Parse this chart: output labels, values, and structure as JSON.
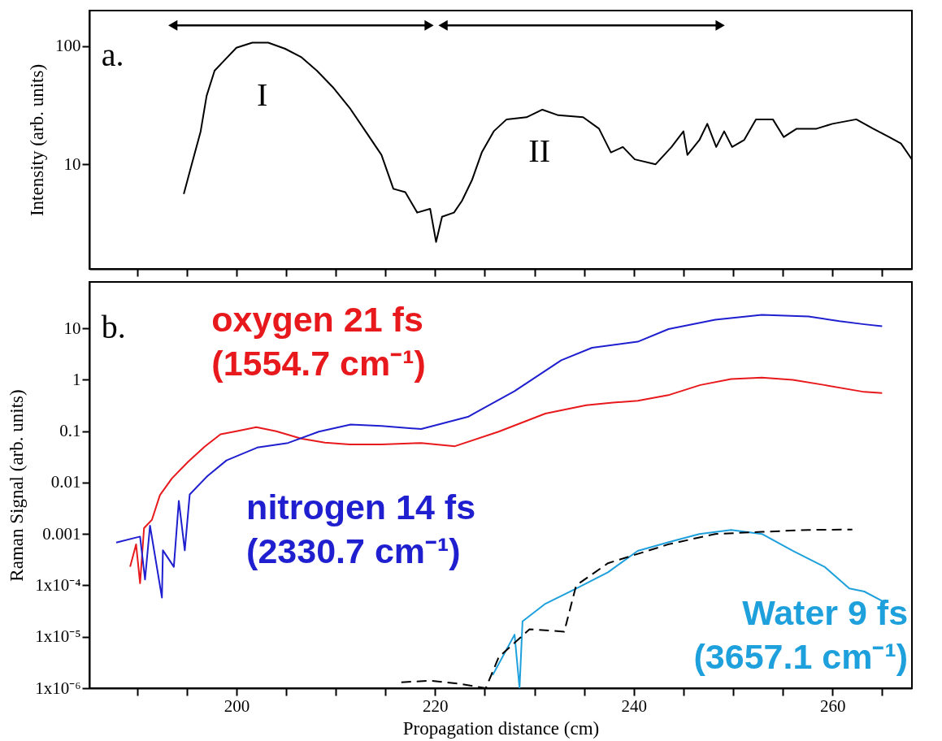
{
  "chart_data": [
    {
      "type": "line",
      "ylabel": "Intensity (arb. units)",
      "log": "y",
      "grid": false,
      "tick_labels": "y",
      "xlim": [
        185.2,
        268
      ],
      "ylim": [
        1.3,
        200
      ],
      "xticks": [
        {
          "value": 190,
          "label": null
        },
        {
          "value": 195,
          "label": null
        },
        {
          "value": 200,
          "label": null
        },
        {
          "value": 205,
          "label": null
        },
        {
          "value": 210,
          "label": null
        },
        {
          "value": 215,
          "label": null
        },
        {
          "value": 220,
          "label": null
        },
        {
          "value": 225,
          "label": null
        },
        {
          "value": 230,
          "label": null
        },
        {
          "value": 235,
          "label": null
        },
        {
          "value": 240,
          "label": null
        },
        {
          "value": 245,
          "label": null
        },
        {
          "value": 250,
          "label": null
        },
        {
          "value": 255,
          "label": null
        },
        {
          "value": 260,
          "label": null
        },
        {
          "value": 265,
          "label": null
        }
      ],
      "yticks": [
        10,
        100
      ],
      "annotations": [
        "a.",
        "I",
        "II"
      ],
      "series": [
        {
          "color": "#000000",
          "x": [
            194.7,
            195.5,
            196.4,
            197,
            197.8,
            198.8,
            200,
            201.6,
            203.2,
            204.9,
            206.5,
            208.1,
            209.7,
            211.4,
            213,
            214.6,
            215.8,
            217,
            218.2,
            219.5,
            220.1,
            220.7,
            221.9,
            222.7,
            223.7,
            224.7,
            225.9,
            227.2,
            229.2,
            230.8,
            232.4,
            234.9,
            236.5,
            237.7,
            238.9,
            240.1,
            242.2,
            243.8,
            245,
            245.4,
            246.6,
            247.4,
            248.3,
            249.1,
            249.9,
            251.1,
            252.3,
            254,
            255.1,
            256.4,
            258.4,
            260,
            262.4,
            264.1,
            265.7,
            266.9,
            268
          ],
          "values": [
            5.6,
            10,
            19,
            38,
            62,
            76,
            97,
            107,
            107,
            95,
            81,
            62,
            45,
            30,
            19,
            12,
            6.2,
            5.8,
            3.9,
            4.2,
            2.2,
            3.6,
            3.9,
            4.9,
            7.3,
            12.6,
            19,
            24,
            25,
            29,
            26,
            25,
            20,
            12.6,
            14,
            11,
            10,
            14,
            19,
            12,
            16,
            22,
            14,
            19,
            14,
            16,
            24,
            24,
            17,
            20,
            20,
            22,
            24,
            20,
            17,
            15,
            11
          ]
        }
      ]
    },
    {
      "type": "line",
      "xlabel": "Propagation distance (cm)",
      "ylabel": "Raman Signal (arb. units)",
      "log": "y",
      "grid": false,
      "xlim": [
        185.2,
        268
      ],
      "ylim": [
        1e-06,
        80
      ],
      "xticks": [
        {
          "value": 190,
          "label": null
        },
        {
          "value": 195,
          "label": null
        },
        200,
        {
          "value": 205,
          "label": null
        },
        {
          "value": 210,
          "label": null
        },
        {
          "value": 215,
          "label": null
        },
        220,
        {
          "value": 225,
          "label": null
        },
        {
          "value": 230,
          "label": null
        },
        {
          "value": 235,
          "label": null
        },
        240,
        {
          "value": 245,
          "label": null
        },
        {
          "value": 250,
          "label": null
        },
        {
          "value": 255,
          "label": null
        },
        260,
        {
          "value": 265,
          "label": null
        }
      ],
      "yticks": [
        {
          "value": 1e-06,
          "label": "1x10⁻⁶"
        },
        {
          "value": 1e-05,
          "label": "1x10⁻⁵"
        },
        {
          "value": 0.0001,
          "label": "1x10⁻⁴"
        },
        0.001,
        0.01,
        0.1,
        1,
        10
      ],
      "annotations": [
        "b."
      ],
      "series": [
        {
          "name": "oxygen 21 fs (1554.7 cm⁻¹)",
          "color": "#e8191c",
          "line_style": "solid",
          "x": [
            189.3,
            189.9,
            190.3,
            190.7,
            191.5,
            192.3,
            193.5,
            195.1,
            196.8,
            198.4,
            200,
            202,
            204,
            206.5,
            208.9,
            211.4,
            214.6,
            218.6,
            222,
            226.4,
            231.1,
            235.2,
            237.9,
            240.4,
            243.6,
            246.7,
            249.8,
            252.9,
            256,
            259.2,
            263.2,
            265
          ],
          "values": [
            0.00023,
            0.00063,
            0.00011,
            0.0013,
            0.0019,
            0.0057,
            0.012,
            0.025,
            0.05,
            0.087,
            0.1,
            0.12,
            0.1,
            0.072,
            0.06,
            0.055,
            0.055,
            0.059,
            0.051,
            0.098,
            0.22,
            0.32,
            0.36,
            0.39,
            0.51,
            0.79,
            1.03,
            1.1,
            1,
            0.79,
            0.58,
            0.55
          ]
        },
        {
          "name": "nitrogen 14 fs (2330.7 cm⁻¹)",
          "color": "#1f1fd0",
          "line_style": "solid",
          "x": [
            187.9,
            190.3,
            190.8,
            191.3,
            192.5,
            192.6,
            193.7,
            194.2,
            194.8,
            195.3,
            197.1,
            199,
            202.1,
            205.2,
            208.3,
            211.5,
            214.6,
            218.6,
            223.3,
            228,
            232.7,
            235.8,
            240.4,
            243.5,
            248.2,
            252.9,
            257.6,
            260.7,
            263.2,
            265
          ],
          "values": [
            0.00068,
            0.00089,
            0.00013,
            0.00145,
            5.8e-05,
            0.00048,
            0.00023,
            0.0044,
            0.00048,
            0.0059,
            0.0135,
            0.027,
            0.048,
            0.059,
            0.098,
            0.135,
            0.126,
            0.11,
            0.19,
            0.6,
            2.4,
            4.2,
            5.5,
            9.7,
            14.7,
            18.3,
            17,
            13.8,
            12,
            11
          ]
        },
        {
          "name": "Water 9 fs (3657.1 cm⁻¹)",
          "color": "#1ea0dc",
          "line_style": "solid",
          "x": [
            225.8,
            228,
            228.5,
            228.8,
            231.1,
            234.2,
            237.4,
            240.4,
            243.6,
            246.6,
            249.8,
            252.9,
            256,
            259.2,
            261.7,
            263.2,
            265
          ],
          "values": [
            1.8e-06,
            1.1e-05,
            1e-06,
            2e-05,
            4.4e-05,
            8.7e-05,
            0.00018,
            0.00047,
            0.0007,
            0.001,
            0.0012,
            0.001,
            0.00047,
            0.00023,
            8.7e-05,
            7.6e-05,
            5e-05
          ]
        },
        {
          "color": "#000000",
          "line_style": "dashed",
          "x": [
            216.6,
            219.5,
            222.7,
            225.1,
            226.4,
            229.5,
            233,
            234.2,
            237.4,
            243.5,
            248.2,
            252.9,
            257.6,
            262
          ],
          "values": [
            1.3e-06,
            1.4e-06,
            1.2e-06,
            1e-06,
            4e-06,
            1.4e-05,
            1.26e-05,
            0.0001,
            0.00027,
            0.00063,
            0.001,
            0.0011,
            0.0012,
            0.00122
          ]
        }
      ]
    }
  ]
}
